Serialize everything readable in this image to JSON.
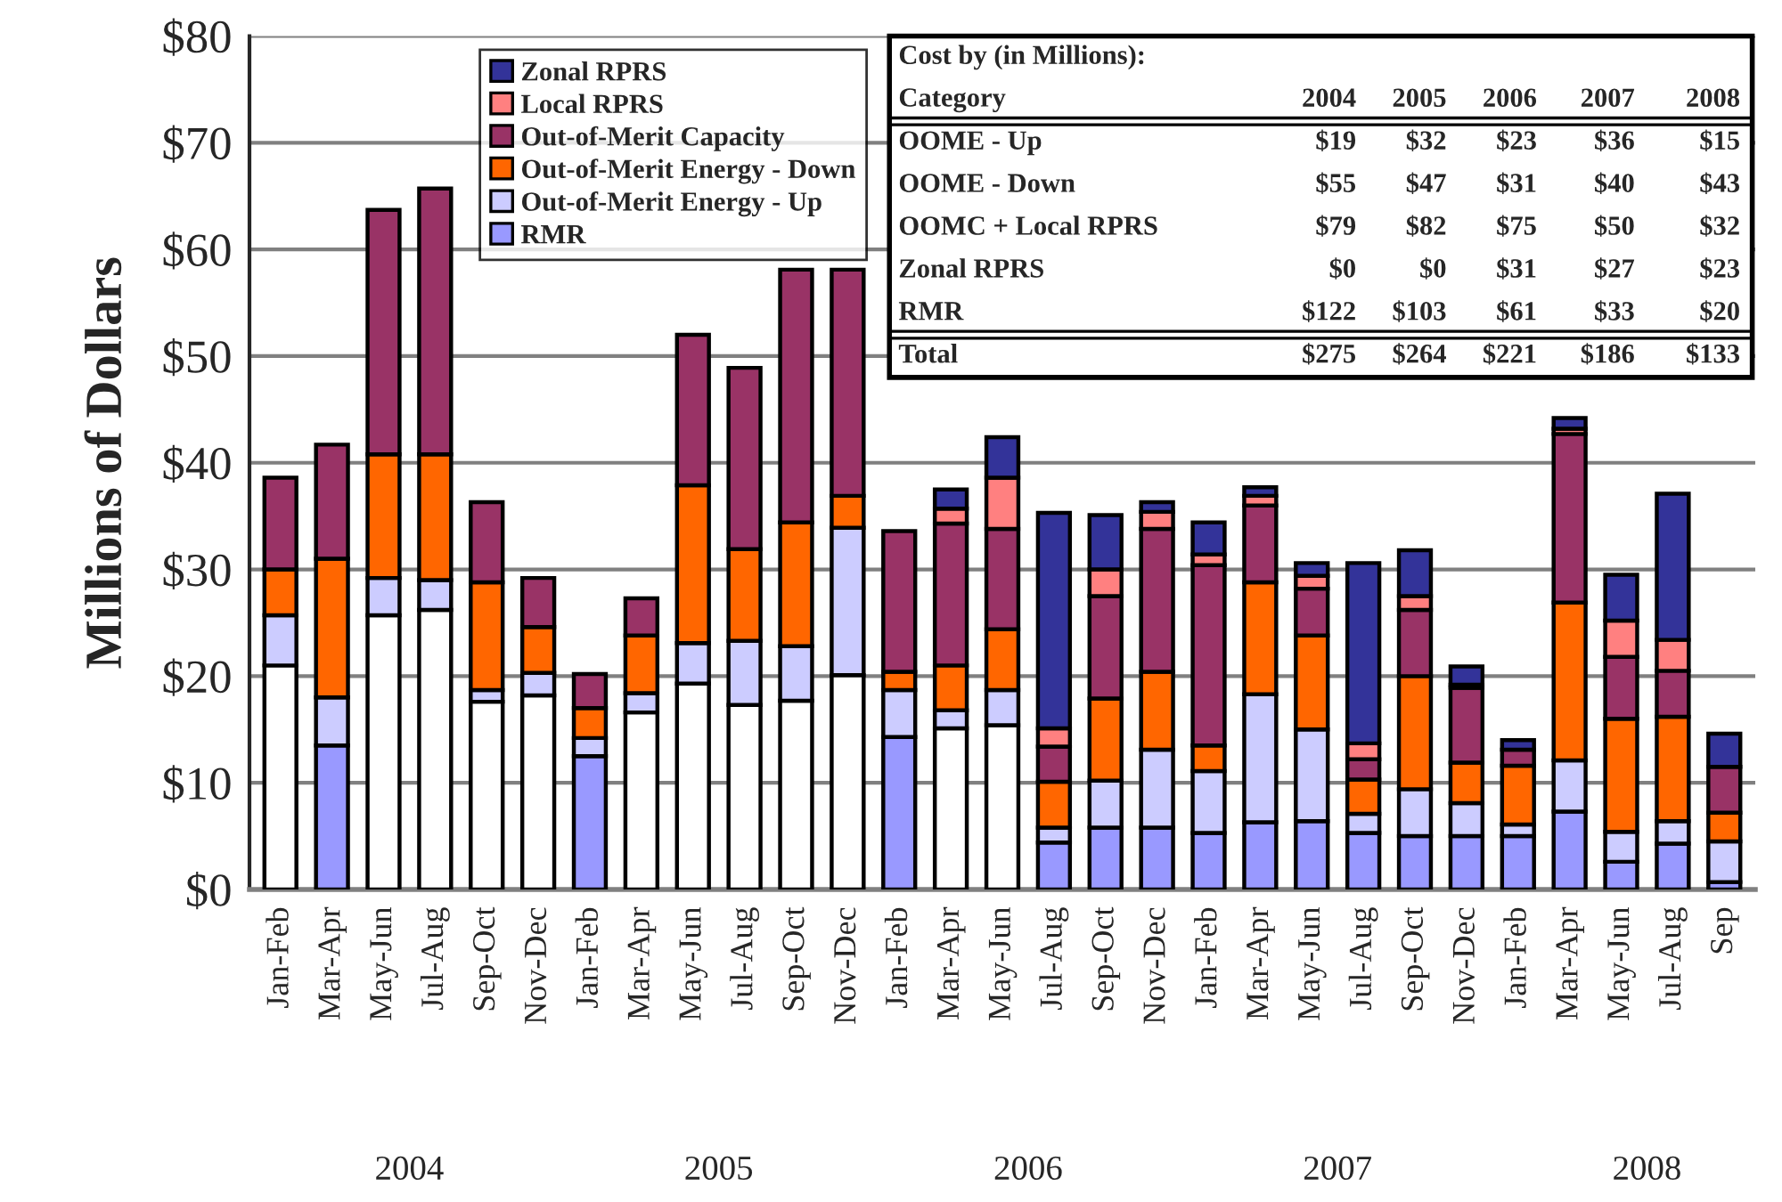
{
  "chart_data": {
    "type": "bar",
    "stacked": true,
    "ylabel": "Millions of Dollars",
    "categories": [
      "Jan-Feb",
      "Mar-Apr",
      "May-Jun",
      "Jul-Aug",
      "Sep-Oct",
      "Nov-Dec",
      "Jan-Feb",
      "Mar-Apr",
      "May-Jun",
      "Jul-Aug",
      "Sep-Oct",
      "Nov-Dec",
      "Jan-Feb",
      "Mar-Apr",
      "May-Jun",
      "Jul-Aug",
      "Sep-Oct",
      "Nov-Dec",
      "Jan-Feb",
      "Mar-Apr",
      "May-Jun",
      "Jul-Aug",
      "Sep-Oct",
      "Nov-Dec",
      "Jan-Feb",
      "Mar-Apr",
      "May-Jun",
      "Jul-Aug",
      "Sep"
    ],
    "series": [
      {
        "name": "RMR",
        "color": "#9999ff",
        "colors": [
          "#ffffff",
          "#9999ff",
          "#ffffff",
          "#ffffff",
          "#ffffff",
          "#ffffff",
          "#9999ff",
          "#ffffff",
          "#ffffff",
          "#ffffff",
          "#ffffff",
          "#ffffff",
          "#9999ff",
          "#ffffff",
          "#ffffff",
          "#9999ff",
          "#9999ff",
          "#9999ff",
          "#9999ff",
          "#9999ff",
          "#9999ff",
          "#9999ff",
          "#9999ff",
          "#9999ff",
          "#9999ff",
          "#9999ff",
          "#9999ff",
          "#9999ff",
          "#9999ff"
        ],
        "values": [
          21,
          13.5,
          25.7,
          26.2,
          17.6,
          18.2,
          12.5,
          16.6,
          19.3,
          17.3,
          17.7,
          20.1,
          14.3,
          15.1,
          15.4,
          4.4,
          5.8,
          5.8,
          5.3,
          6.3,
          6.4,
          5.3,
          5.0,
          5.0,
          5.0,
          7.3,
          2.6,
          4.3,
          0.7
        ]
      },
      {
        "name": "Out-of-Merit Energy - Up",
        "color": "#ccccff",
        "values": [
          4.7,
          4.5,
          3.5,
          2.8,
          1.1,
          2.1,
          1.7,
          1.8,
          3.8,
          6.0,
          5.1,
          13.8,
          4.4,
          1.7,
          3.3,
          1.4,
          4.4,
          7.3,
          5.8,
          12.0,
          8.6,
          1.8,
          4.4,
          3.1,
          1.1,
          4.8,
          2.8,
          2.1,
          3.8
        ]
      },
      {
        "name": "Out-of-Merit Energy - Down",
        "color": "#ff6600",
        "values": [
          4.3,
          13,
          11.6,
          11.8,
          10.1,
          4.3,
          2.8,
          5.4,
          14.8,
          8.6,
          11.6,
          3.0,
          1.7,
          4.2,
          5.7,
          4.3,
          7.7,
          7.3,
          2.4,
          10.5,
          8.8,
          3.2,
          10.6,
          3.8,
          5.5,
          14.8,
          10.6,
          9.8,
          2.7
        ]
      },
      {
        "name": "Out-of-Merit Capacity",
        "color": "#993366",
        "values": [
          8.6,
          10.7,
          22.9,
          24.9,
          7.5,
          4.6,
          3.2,
          3.5,
          14.1,
          17.0,
          23.7,
          21.2,
          13.2,
          13.3,
          9.4,
          3.3,
          9.6,
          13.4,
          16.9,
          7.2,
          4.4,
          1.9,
          6.2,
          7.0,
          1.5,
          15.8,
          5.8,
          4.3,
          4.3
        ]
      },
      {
        "name": "Local RPRS",
        "color": "#ff8080",
        "values": [
          null,
          null,
          null,
          null,
          null,
          null,
          null,
          null,
          null,
          null,
          null,
          null,
          null,
          1.4,
          4.8,
          1.7,
          2.5,
          1.6,
          1.0,
          0.9,
          1.2,
          1.5,
          1.3,
          0.3,
          null,
          0.5,
          3.4,
          2.9,
          null
        ]
      },
      {
        "name": "Zonal RPRS",
        "color": "#333399",
        "values": [
          null,
          null,
          null,
          null,
          null,
          null,
          null,
          null,
          null,
          null,
          null,
          null,
          null,
          1.8,
          3.8,
          20.2,
          5.1,
          0.9,
          3.0,
          0.8,
          1.2,
          16.9,
          4.3,
          1.7,
          0.9,
          1.0,
          4.3,
          13.7,
          3.1
        ]
      }
    ],
    "ylim": [
      0,
      80
    ],
    "yticks": [
      {
        "value": 0,
        "label": "$0"
      },
      {
        "value": 10,
        "label": "$10"
      },
      {
        "value": 20,
        "label": "$20"
      },
      {
        "value": 30,
        "label": "$30"
      },
      {
        "value": 40,
        "label": "$40"
      },
      {
        "value": 50,
        "label": "$50"
      },
      {
        "value": 60,
        "label": "$60"
      },
      {
        "value": 70,
        "label": "$70"
      },
      {
        "value": 80,
        "label": "$80"
      }
    ],
    "grid": "y",
    "legend": "top left",
    "annotations": [
      "Cost by (in Millions):",
      "Category",
      "2004",
      "2005",
      "2006",
      "2007",
      "2008",
      "OOME - Up",
      "$19",
      "$32",
      "$23",
      "$36",
      "$15",
      "OOME - Down",
      "$55",
      "$47",
      "$31",
      "$40",
      "$43",
      "OOMC + Local RPRS",
      "$79",
      "$82",
      "$75",
      "$50",
      "$32",
      "Zonal RPRS",
      "$0",
      "$0",
      "$31",
      "$27",
      "$23",
      "RMR",
      "$122",
      "$103",
      "$61",
      "$33",
      "$20",
      "Total",
      "$275",
      "$264",
      "$221",
      "$186",
      "$133",
      "2004",
      "2005",
      "2006",
      "2007",
      "2008"
    ]
  }
}
